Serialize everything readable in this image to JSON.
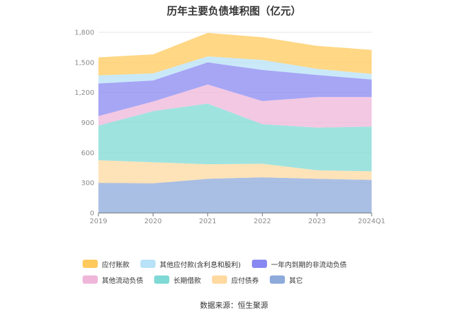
{
  "title": "历年主要负债堆积图（亿元）",
  "source": "数据来源：恒生聚源",
  "chart_data": {
    "type": "area",
    "stacked": true,
    "title": "历年主要负债堆积图（亿元）",
    "x": [
      "2019",
      "2020",
      "2021",
      "2022",
      "2023",
      "2024Q1"
    ],
    "ylim": [
      0,
      1800
    ],
    "yticks": [
      0,
      300,
      600,
      900,
      1200,
      1500,
      1800
    ],
    "ytick_labels": [
      "0",
      "300",
      "600",
      "900",
      "1,200",
      "1,500",
      "1,800"
    ],
    "grid": true,
    "legend_position": "bottom",
    "series": [
      {
        "name": "其它",
        "color": "#8eaadb",
        "values": [
          300,
          295,
          340,
          355,
          340,
          330
        ]
      },
      {
        "name": "应付债券",
        "color": "#ffd9a0",
        "values": [
          225,
          210,
          145,
          135,
          85,
          85
        ]
      },
      {
        "name": "长期借款",
        "color": "#7fd9d4",
        "values": [
          345,
          510,
          605,
          395,
          425,
          445
        ]
      },
      {
        "name": "其他流动负债",
        "color": "#efb6da",
        "values": [
          95,
          95,
          190,
          230,
          305,
          295
        ]
      },
      {
        "name": "一年内到期的非流动负债",
        "color": "#8888f2",
        "values": [
          325,
          210,
          220,
          310,
          220,
          175
        ]
      },
      {
        "name": "其他应付款(含利息和股利)",
        "color": "#b7e2f7",
        "values": [
          80,
          70,
          60,
          100,
          60,
          55
        ]
      },
      {
        "name": "应付账款",
        "color": "#ffc95c",
        "values": [
          180,
          190,
          235,
          225,
          230,
          240
        ]
      }
    ]
  },
  "legend_order": [
    6,
    5,
    4,
    3,
    2,
    1,
    0
  ]
}
